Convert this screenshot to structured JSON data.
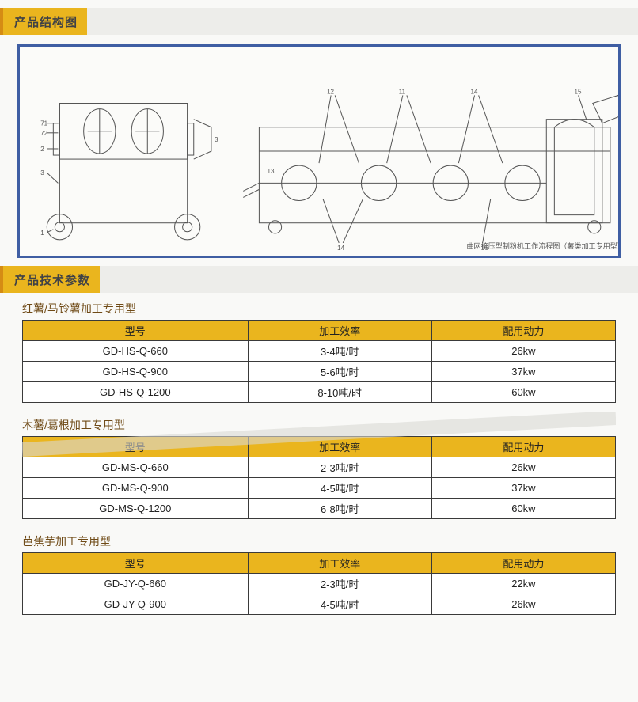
{
  "sections": {
    "structure": {
      "title": "产品结构图"
    },
    "specs": {
      "title": "产品技术参数"
    }
  },
  "diagram": {
    "caption": "曲网挤压型制粉机工作流程图（薯类加工专用型）",
    "front_labels": [
      "1",
      "2",
      "3",
      "71",
      "72"
    ],
    "side_labels": [
      "12",
      "13",
      "14",
      "15",
      "16",
      "11"
    ]
  },
  "tables": [
    {
      "title": "红薯/马铃薯加工专用型",
      "header_bg": "#eab51e",
      "columns": [
        "型号",
        "加工效率",
        "配用动力"
      ],
      "col_widths": [
        "38%",
        "31%",
        "31%"
      ],
      "rows": [
        [
          "GD-HS-Q-660",
          "3-4吨/时",
          "26kw"
        ],
        [
          "GD-HS-Q-900",
          "5-6吨/时",
          "37kw"
        ],
        [
          "GD-HS-Q-1200",
          "8-10吨/时",
          "60kw"
        ]
      ]
    },
    {
      "title": "木薯/葛根加工专用型",
      "header_bg": "#eab51e",
      "columns": [
        "型号",
        "加工效率",
        "配用动力"
      ],
      "col_widths": [
        "38%",
        "31%",
        "31%"
      ],
      "rows": [
        [
          "GD-MS-Q-660",
          "2-3吨/时",
          "26kw"
        ],
        [
          "GD-MS-Q-900",
          "4-5吨/时",
          "37kw"
        ],
        [
          "GD-MS-Q-1200",
          "6-8吨/时",
          "60kw"
        ]
      ]
    },
    {
      "title": "芭蕉芋加工专用型",
      "header_bg": "#eab51e",
      "columns": [
        "型号",
        "加工效率",
        "配用动力"
      ],
      "col_widths": [
        "38%",
        "31%",
        "31%"
      ],
      "rows": [
        [
          "GD-JY-Q-660",
          "2-3吨/时",
          "22kw"
        ],
        [
          "GD-JY-Q-900",
          "4-5吨/时",
          "26kw"
        ]
      ]
    }
  ],
  "colors": {
    "frame_border": "#3f5ea3",
    "header_bar_bg": "#ededea",
    "accent_bg": "#eab51e",
    "accent_border": "#d58c14",
    "page_bg": "#f9f9f7",
    "text": "#333333",
    "table_border": "#3a3a3a",
    "title_text": "#6f4a16",
    "diagram_stroke": "#555555"
  }
}
